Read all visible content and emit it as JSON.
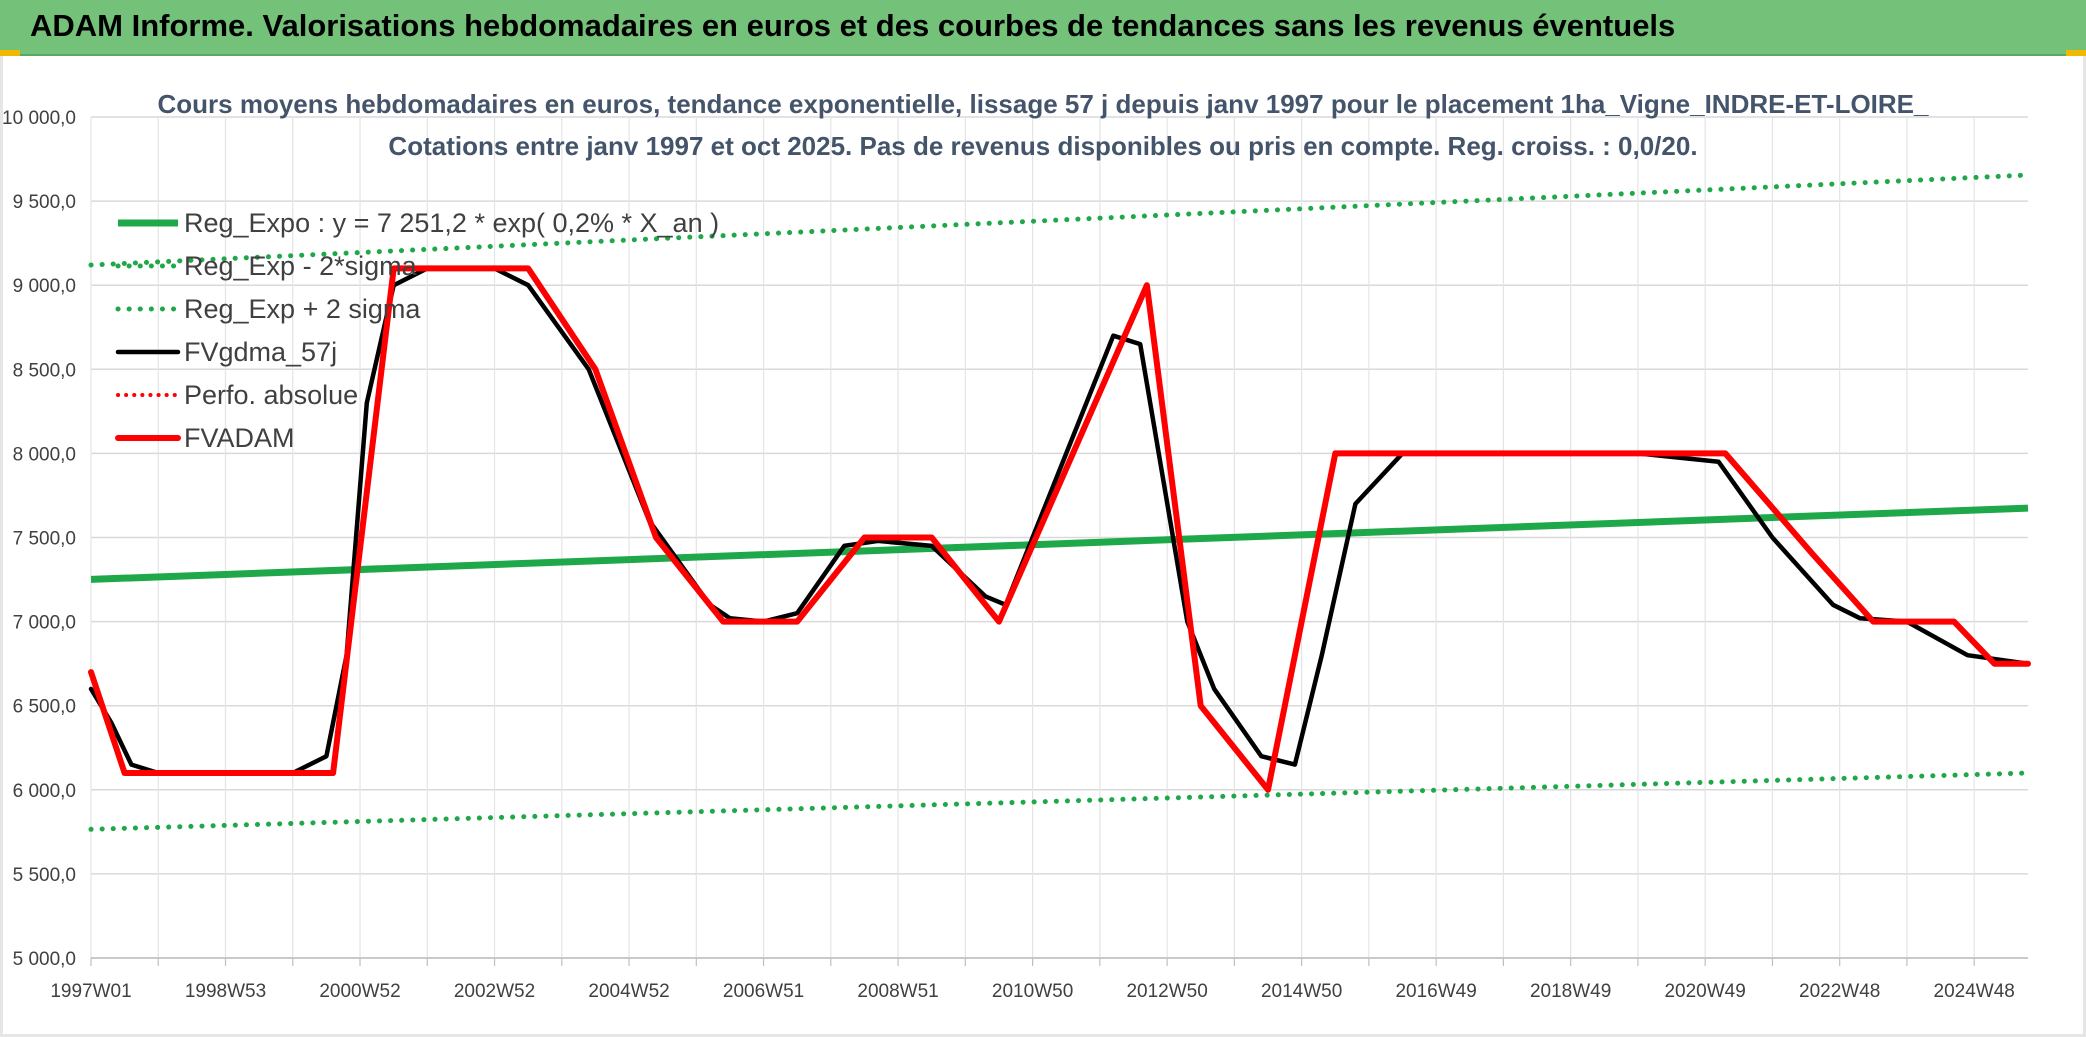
{
  "header": {
    "title": "ADAM Informe. Valorisations hebdomadaires en euros et des courbes de tendances sans les revenus éventuels",
    "bg_color": "#74c27a"
  },
  "chart_data": {
    "type": "line",
    "title_line1": "Cours moyens hebdomadaires en euros, tendance exponentielle, lissage 57 j depuis janv 1997 pour le placement 1ha_Vigne_INDRE-ET-LOIRE_",
    "title_line2": "Cotations entre janv 1997 et oct 2025. Pas de revenus disponibles ou pris en compte. Reg. croiss. : 0,0/20.",
    "xlabel": "",
    "ylabel": "",
    "ylim": [
      5000,
      10000
    ],
    "xlim": [
      1997.0,
      2025.8
    ],
    "y_ticks": [
      "5 000,0",
      "5 500,0",
      "6 000,0",
      "6 500,0",
      "7 000,0",
      "7 500,0",
      "8 000,0",
      "8 500,0",
      "9 000,0",
      "9 500,0",
      "10 000,0"
    ],
    "y_tick_values": [
      5000,
      5500,
      6000,
      6500,
      7000,
      7500,
      8000,
      8500,
      9000,
      9500,
      10000
    ],
    "x_ticks": [
      "1997W01",
      "1998W53",
      "2000W52",
      "2002W52",
      "2004W52",
      "2006W51",
      "2008W51",
      "2010W50",
      "2012W50",
      "2014W50",
      "2016W49",
      "2018W49",
      "2020W49",
      "2022W48",
      "2024W48"
    ],
    "x_tick_values": [
      1997.0,
      1999.0,
      2001.0,
      2003.0,
      2005.0,
      2007.0,
      2009.0,
      2011.0,
      2013.0,
      2015.0,
      2017.0,
      2019.0,
      2021.0,
      2023.0,
      2025.0
    ],
    "legend": [
      {
        "name": "Reg_Expo : y = 7 251,2 * exp( 0,2% *  X_an )",
        "color": "#1fa84a",
        "style": "solid-thick"
      },
      {
        "name": "Reg_Exp - 2*sigma",
        "color": "#1fa84a",
        "style": "dotted"
      },
      {
        "name": "Reg_Exp + 2 sigma",
        "color": "#1fa84a",
        "style": "dotted"
      },
      {
        "name": "FVgdma_57j",
        "color": "#000000",
        "style": "solid"
      },
      {
        "name": "Perfo. absolue",
        "color": "#ff0000",
        "style": "dotted"
      },
      {
        "name": "FVADAM",
        "color": "#ff0000",
        "style": "solid-thick"
      }
    ],
    "series": [
      {
        "name": "Reg_Expo : y = 7 251,2 * exp( 0,2% *  X_an )",
        "color": "#1fa84a",
        "x": [
          1997.0,
          2025.8
        ],
        "values": [
          7251,
          7675
        ]
      },
      {
        "name": "Reg_Exp - 2*sigma",
        "color": "#1fa84a",
        "x": [
          1997.0,
          2025.8
        ],
        "values": [
          5765,
          6100
        ]
      },
      {
        "name": "Reg_Exp + 2 sigma",
        "color": "#1fa84a",
        "x": [
          1997.0,
          2025.8
        ],
        "values": [
          9120,
          9655
        ]
      },
      {
        "name": "FVgdma_57j",
        "color": "#000000",
        "x": [
          1997.0,
          1997.3,
          1997.6,
          1998.0,
          2000.0,
          2000.5,
          2000.8,
          2001.1,
          2001.5,
          2002.0,
          2003.0,
          2003.5,
          2004.4,
          2005.3,
          2006.2,
          2006.5,
          2007.0,
          2007.5,
          2008.2,
          2008.7,
          2009.5,
          2010.3,
          2010.6,
          2011.0,
          2012.2,
          2012.6,
          2013.3,
          2013.7,
          2014.4,
          2014.9,
          2015.3,
          2015.8,
          2016.5,
          2020.0,
          2021.2,
          2022.0,
          2022.9,
          2023.3,
          2024.0,
          2024.9,
          2025.8
        ],
        "values": [
          6600,
          6400,
          6150,
          6100,
          6100,
          6200,
          6800,
          8300,
          9000,
          9100,
          9100,
          9000,
          8500,
          7600,
          7100,
          7020,
          7000,
          7050,
          7450,
          7480,
          7450,
          7150,
          7100,
          7500,
          8700,
          8650,
          7000,
          6600,
          6200,
          6150,
          6800,
          7700,
          8000,
          8000,
          7950,
          7500,
          7100,
          7020,
          7000,
          6800,
          6750
        ]
      },
      {
        "name": "Perfo. absolue",
        "color": "#ff0000",
        "x": [],
        "values": []
      },
      {
        "name": "FVADAM",
        "color": "#ff0000",
        "x": [
          1997.0,
          1997.5,
          2000.6,
          2001.5,
          2003.5,
          2004.5,
          2005.4,
          2006.4,
          2007.5,
          2008.5,
          2009.5,
          2010.5,
          2012.7,
          2013.5,
          2014.5,
          2015.5,
          2021.3,
          2022.6,
          2023.5,
          2024.7,
          2025.3,
          2025.8
        ],
        "values": [
          6700,
          6100,
          6100,
          9100,
          9100,
          8500,
          7500,
          7000,
          7000,
          7500,
          7500,
          7000,
          9000,
          6500,
          6000,
          8000,
          8000,
          7400,
          7000,
          7000,
          6750,
          6750
        ]
      }
    ]
  }
}
